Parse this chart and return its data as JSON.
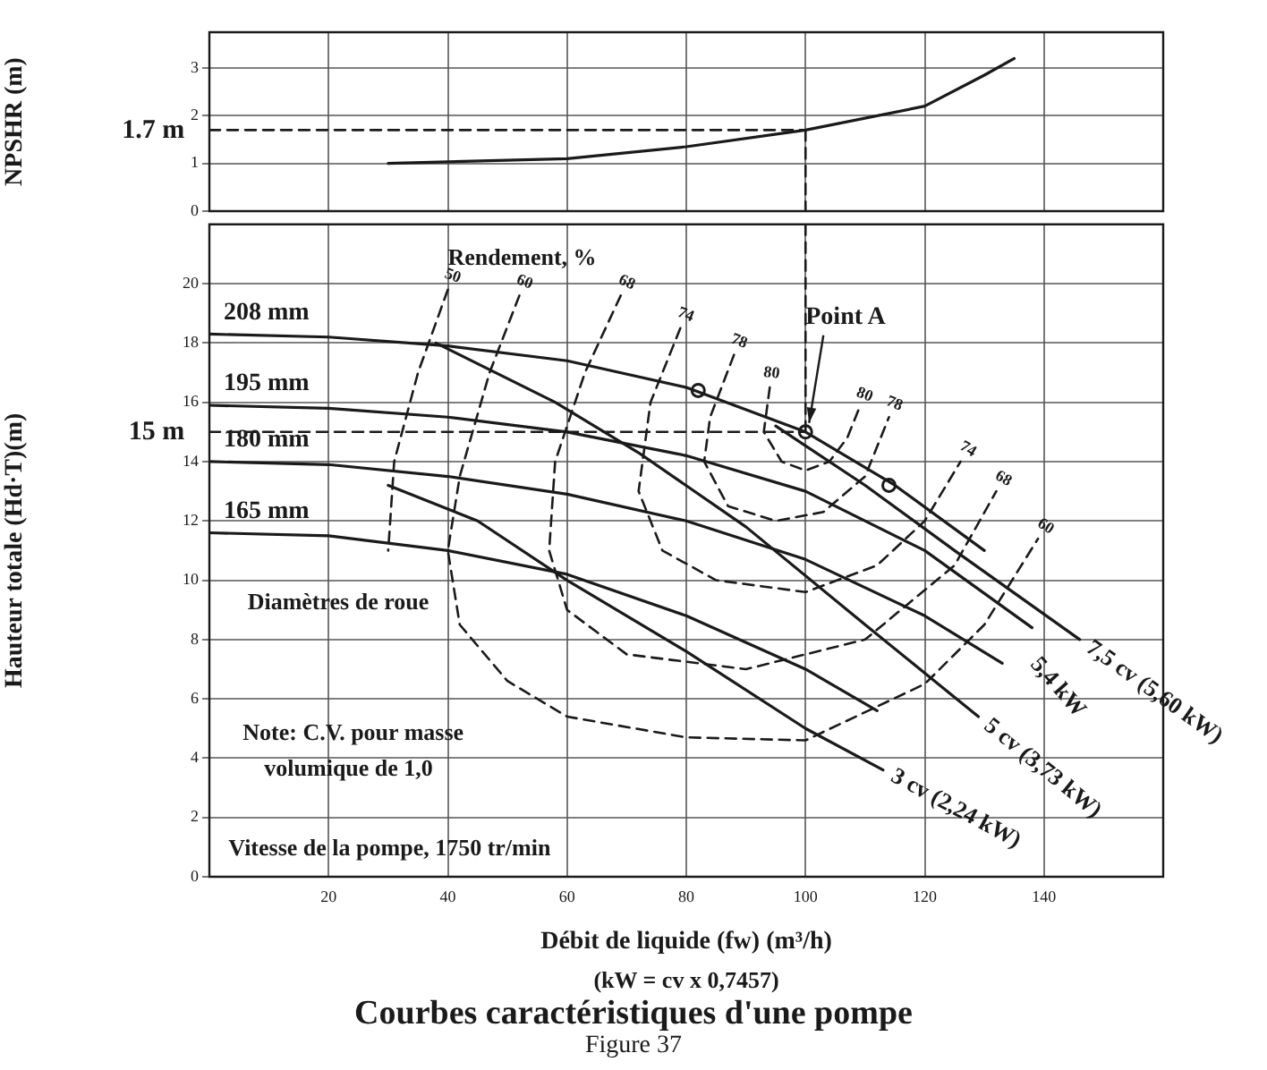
{
  "chart_data": [
    {
      "type": "line",
      "ylabel": "NPSHR (m)",
      "xlim": [
        0,
        160
      ],
      "xticks": [
        {
          "value": 0,
          "label": null
        },
        20,
        40,
        60,
        80,
        100,
        120,
        140
      ],
      "ylim": [
        0,
        3.75
      ],
      "yticks": [
        0,
        1,
        2,
        3
      ],
      "grid": true,
      "legend": false,
      "tick_labels": "y",
      "marker": "none",
      "series": [
        {
          "color": "#1a1a1a",
          "x": [
            30,
            60,
            80,
            100,
            120,
            130,
            135
          ],
          "values": [
            1.0,
            1.1,
            1.35,
            1.7,
            2.2,
            2.85,
            3.2
          ]
        },
        {
          "color": "#1a1a1a",
          "line_style": "dashed",
          "x": [
            0,
            100
          ],
          "values": [
            1.7,
            1.7
          ]
        },
        {
          "color": "#1a1a1a",
          "line_style": "dashed",
          "x": [
            100,
            100
          ],
          "values": [
            1.7,
            0
          ]
        }
      ],
      "annotations": [
        "1.7 m"
      ]
    },
    {
      "type": "line",
      "title": "Courbes caractéristiques d'une pompe",
      "subtitle": "Figure 37",
      "xlabel": "Débit de liquide (fw) (m³/h)",
      "ylabel": "Hauteur totale (Hd·T)(m)",
      "xlim": [
        0,
        160
      ],
      "xticks": [
        {
          "value": 0,
          "label": null
        },
        20,
        40,
        60,
        80,
        100,
        120,
        140
      ],
      "ylim": [
        0,
        22
      ],
      "yticks": [
        0,
        2,
        4,
        6,
        8,
        10,
        12,
        14,
        16,
        18,
        20
      ],
      "grid": true,
      "legend": false,
      "marker": "none",
      "series": [
        {
          "name": "208 mm",
          "color": "#1a1a1a",
          "x": [
            0,
            20,
            40,
            60,
            80,
            100,
            115,
            130
          ],
          "values": [
            18.3,
            18.2,
            17.9,
            17.4,
            16.5,
            15.0,
            13.2,
            11.0
          ]
        },
        {
          "name": "195 mm",
          "color": "#1a1a1a",
          "x": [
            0,
            20,
            40,
            60,
            80,
            100,
            120,
            138
          ],
          "values": [
            15.9,
            15.8,
            15.5,
            15.0,
            14.2,
            13.0,
            11.0,
            8.4
          ]
        },
        {
          "name": "180 mm",
          "color": "#1a1a1a",
          "x": [
            0,
            20,
            40,
            60,
            80,
            100,
            120,
            133
          ],
          "values": [
            14.0,
            13.9,
            13.5,
            12.9,
            12.0,
            10.7,
            8.8,
            7.2
          ]
        },
        {
          "name": "165 mm",
          "color": "#1a1a1a",
          "x": [
            0,
            20,
            40,
            60,
            80,
            100,
            112
          ],
          "values": [
            11.6,
            11.5,
            11.0,
            10.2,
            8.8,
            7.0,
            5.6
          ]
        },
        {
          "name": "3 cv (2,24 kW)",
          "color": "#1a1a1a",
          "x": [
            30,
            45,
            60,
            80,
            100,
            113
          ],
          "values": [
            13.2,
            12.0,
            10.0,
            7.6,
            5.0,
            3.6
          ]
        },
        {
          "name": "5 cv (3,73 kW)",
          "color": "#1a1a1a",
          "x": [
            38,
            58,
            72,
            90,
            110,
            129
          ],
          "values": [
            18.0,
            16.0,
            14.3,
            11.8,
            8.5,
            5.4
          ]
        },
        {
          "name": "7,5 cv (5,60 kW)",
          "color": "#1a1a1a",
          "x": [
            95,
            110,
            125,
            146
          ],
          "values": [
            15.2,
            13.2,
            11.0,
            8.0
          ]
        },
        {
          "name": "50",
          "color": "#1a1a1a",
          "line_style": "dashed",
          "x": [
            40,
            35,
            31,
            30
          ],
          "values": [
            19.8,
            17,
            14,
            11
          ]
        },
        {
          "name": "60",
          "color": "#1a1a1a",
          "line_style": "dashed",
          "x": [
            52,
            47,
            42,
            40,
            42,
            50,
            60,
            80,
            100,
            120,
            130,
            139
          ],
          "values": [
            19.6,
            17,
            13.5,
            11,
            8.5,
            6.6,
            5.4,
            4.7,
            4.6,
            6.5,
            8.5,
            11.4
          ]
        },
        {
          "name": "68",
          "color": "#1a1a1a",
          "line_style": "dashed",
          "x": [
            69,
            63,
            58,
            57,
            60,
            70,
            90,
            110,
            125,
            132
          ],
          "values": [
            19.6,
            17,
            14,
            11,
            9,
            7.5,
            7.0,
            8,
            10.5,
            13
          ]
        },
        {
          "name": "74",
          "color": "#1a1a1a",
          "line_style": "dashed",
          "x": [
            79,
            74,
            72,
            76,
            85,
            100,
            112,
            120,
            126
          ],
          "values": [
            18.5,
            16,
            13,
            11,
            10,
            9.6,
            10.5,
            12,
            14
          ]
        },
        {
          "name": "78",
          "color": "#1a1a1a",
          "line_style": "dashed",
          "x": [
            88,
            84,
            83,
            87,
            95,
            103,
            110,
            114
          ],
          "values": [
            17.6,
            15.5,
            14,
            12.5,
            12,
            12.3,
            13.5,
            15.5
          ]
        },
        {
          "name": "80",
          "color": "#1a1a1a",
          "line_style": "dashed",
          "x": [
            94,
            93,
            96,
            100,
            104,
            107,
            109
          ],
          "values": [
            16.5,
            15,
            14,
            13.7,
            14.0,
            14.8,
            15.8
          ]
        },
        {
          "color": "#1a1a1a",
          "line_style": "dashed",
          "x": [
            0,
            100
          ],
          "values": [
            15,
            15
          ]
        },
        {
          "color": "#1a1a1a",
          "line_style": "dashed",
          "x": [
            100,
            100
          ],
          "values": [
            22,
            15
          ]
        },
        {
          "type": "scatter",
          "marker": "circle",
          "color": "#1a1a1a",
          "x": [
            82,
            100,
            114
          ],
          "values": [
            16.4,
            15.0,
            13.2
          ]
        }
      ],
      "annotations": [
        "15 m",
        {
          "text": "Point A",
          "x": 100,
          "y": 15
        },
        "Rendement, %",
        "Diamètres de roue",
        "Note: C.V. pour masse volumique de 1,0",
        "Vitesse de la pompe, 1750 tr/min",
        "(kW = cv x 0,7457)",
        "5,4 kW"
      ]
    }
  ]
}
